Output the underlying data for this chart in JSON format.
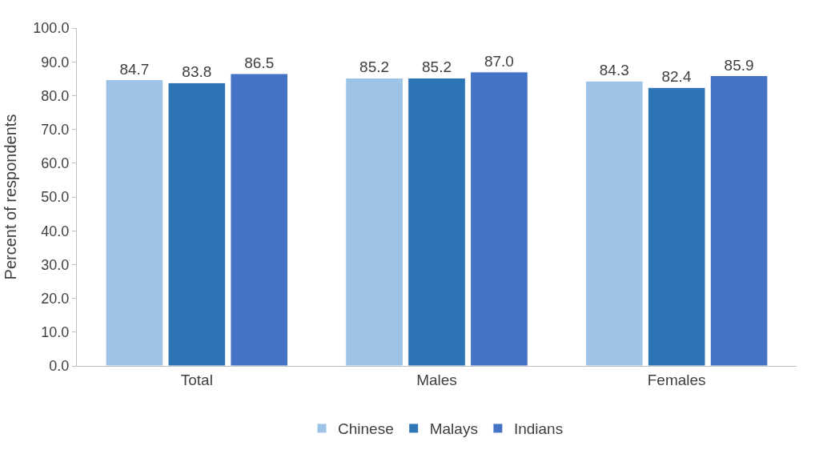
{
  "chart_data": {
    "type": "bar",
    "ylabel": "Percent of respondents",
    "categories": [
      "Total",
      "Males",
      "Females"
    ],
    "series": [
      {
        "name": "Chinese",
        "color": "#9dc3e6",
        "values": [
          84.7,
          85.2,
          84.3
        ]
      },
      {
        "name": "Malays",
        "color": "#2e75b6",
        "values": [
          83.8,
          85.2,
          82.4
        ]
      },
      {
        "name": "Indians",
        "color": "#4472c4",
        "values": [
          86.5,
          87.0,
          85.9
        ],
        "value_labels": [
          "86.5",
          "87.0",
          "85.9"
        ]
      }
    ],
    "ylim": [
      0,
      100
    ],
    "yticks": [
      {
        "value": 0,
        "label": "0.0"
      },
      {
        "value": 10,
        "label": "10.0"
      },
      {
        "value": 20,
        "label": "20.0"
      },
      {
        "value": 30,
        "label": "30.0"
      },
      {
        "value": 40,
        "label": "40.0"
      },
      {
        "value": 50,
        "label": "50.0"
      },
      {
        "value": 60,
        "label": "60.0"
      },
      {
        "value": 70,
        "label": "70.0"
      },
      {
        "value": 80,
        "label": "80.0"
      },
      {
        "value": 90,
        "label": "90.0"
      },
      {
        "value": 100,
        "label": "100.0"
      }
    ],
    "data_labels": true,
    "legend": "bottom"
  }
}
